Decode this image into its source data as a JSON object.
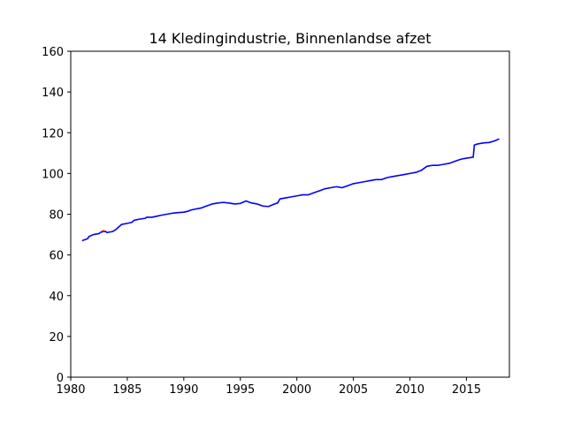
{
  "chart_data": {
    "type": "line",
    "title": "14 Kledingindustrie, Binnenlandse afzet",
    "xlabel": "",
    "ylabel": "",
    "xlim": [
      1980,
      2018.8
    ],
    "ylim": [
      0,
      160
    ],
    "xticks": [
      1980,
      1985,
      1990,
      1995,
      2000,
      2005,
      2010,
      2015
    ],
    "yticks": [
      0,
      20,
      40,
      60,
      80,
      100,
      120,
      140,
      160
    ],
    "grid": false,
    "legend": "none",
    "series": [
      {
        "color": "#0000ff",
        "x": [
          1981.0,
          1981.5,
          1981.6,
          1982.0,
          1982.5,
          1982.6,
          1982.9,
          1983.1,
          1983.2,
          1983.7,
          1984.0,
          1984.1,
          1984.5,
          1985.0,
          1985.4,
          1985.6,
          1986.0,
          1986.6,
          1986.7,
          1987.2,
          1987.6,
          1988.0,
          1988.5,
          1989.0,
          1989.5,
          1990.0,
          1990.4,
          1990.6,
          1991.0,
          1991.5,
          1992.0,
          1992.5,
          1993.0,
          1993.5,
          1994.0,
          1994.5,
          1995.0,
          1995.5,
          1996.0,
          1996.5,
          1997.0,
          1997.5,
          1998.0,
          1998.3,
          1998.5,
          1999.0,
          1999.5,
          2000.0,
          2000.5,
          2001.0,
          2001.5,
          2002.0,
          2002.5,
          2003.0,
          2003.5,
          2004.0,
          2004.5,
          2005.0,
          2005.5,
          2006.0,
          2006.5,
          2007.0,
          2007.5,
          2008.0,
          2008.5,
          2009.0,
          2009.5,
          2010.0,
          2010.5,
          2011.0,
          2011.5,
          2012.0,
          2012.5,
          2013.0,
          2013.5,
          2014.0,
          2014.5,
          2015.0,
          2015.6,
          2015.7,
          2016.0,
          2016.5,
          2017.0,
          2017.5,
          2017.9
        ],
        "y": [
          67,
          68,
          69,
          70,
          70.5,
          71,
          71.5,
          71.5,
          71,
          71.5,
          72.5,
          73,
          75,
          75.5,
          76,
          77,
          77.5,
          78,
          78.5,
          78.5,
          79,
          79.5,
          80,
          80.5,
          80.8,
          81,
          81.5,
          82,
          82.5,
          83,
          84,
          85,
          85.5,
          85.8,
          85.5,
          85,
          85.3,
          86.5,
          85.5,
          85,
          84,
          83.8,
          85,
          85.5,
          87.5,
          88,
          88.5,
          89,
          89.5,
          89.5,
          90.5,
          91.5,
          92.5,
          93,
          93.5,
          93,
          94,
          95,
          95.5,
          96,
          96.5,
          97,
          97,
          98,
          98.5,
          99,
          99.5,
          100,
          100.5,
          101.5,
          103.5,
          104,
          104,
          104.5,
          105,
          106,
          107,
          107.5,
          108,
          114,
          114.5,
          115,
          115.2,
          116,
          117
        ]
      },
      {
        "color": "#ff0000",
        "x": [
          1982.7,
          1983.0
        ],
        "y": [
          71.6,
          71.9
        ]
      }
    ]
  }
}
